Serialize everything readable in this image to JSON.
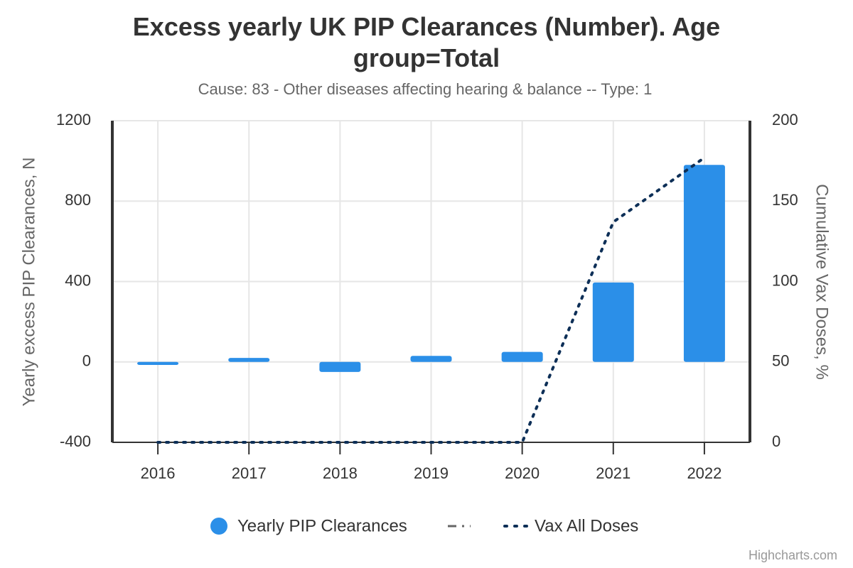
{
  "chart_data": {
    "type": "bar",
    "title": "Excess yearly UK PIP Clearances (Number). Age group=Total",
    "subtitle": "Cause: 83 - Other diseases affecting hearing & balance -- Type: 1",
    "y_axis_label": "Yearly excess PIP Clearances, N",
    "y2_axis_label": "Cumulative Vax Doses, %",
    "credits": "Highcharts.com",
    "categories": [
      "2016",
      "2017",
      "2018",
      "2019",
      "2020",
      "2021",
      "2022"
    ],
    "ylim": [
      -400,
      1200
    ],
    "yticks": [
      -400,
      0,
      400,
      800,
      1200
    ],
    "y2lim": [
      0,
      200
    ],
    "y2ticks": [
      0,
      50,
      100,
      150,
      200
    ],
    "grid": true,
    "series": [
      {
        "name": "Yearly PIP Clearances",
        "type": "bar",
        "color": "#2b8fe8",
        "values": [
          -15,
          20,
          -50,
          30,
          50,
          395,
          980
        ]
      },
      {
        "name": "Vax All Doses",
        "type": "line",
        "axis": "y2",
        "color": "#0d2f57",
        "values": [
          0,
          0,
          0,
          0,
          0,
          137,
          177
        ]
      }
    ]
  }
}
